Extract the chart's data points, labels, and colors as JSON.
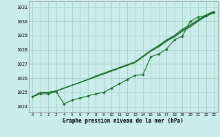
{
  "title": "Graphe pression niveau de la mer (hPa)",
  "bg_color": "#caecea",
  "grid_color": "#aad4cc",
  "line_color": "#1a6b2a",
  "xlim": [
    -0.5,
    23.5
  ],
  "ylim": [
    1023.6,
    1031.4
  ],
  "yticks": [
    1024,
    1025,
    1026,
    1027,
    1028,
    1029,
    1030,
    1031
  ],
  "xticks": [
    0,
    1,
    2,
    3,
    4,
    5,
    6,
    7,
    8,
    9,
    10,
    11,
    12,
    13,
    14,
    15,
    16,
    17,
    18,
    19,
    20,
    21,
    22,
    23
  ],
  "line1": [
    1024.7,
    1025.0,
    1025.0,
    1025.1,
    1025.3,
    1025.5,
    1025.7,
    1025.9,
    1026.1,
    1026.3,
    1026.5,
    1026.7,
    1026.9,
    1027.1,
    1027.5,
    1027.9,
    1028.2,
    1028.6,
    1028.9,
    1029.3,
    1029.6,
    1030.0,
    1030.35,
    1030.6
  ],
  "line2": [
    1024.7,
    1025.0,
    1025.0,
    1025.1,
    1025.3,
    1025.5,
    1025.7,
    1025.9,
    1026.1,
    1026.3,
    1026.5,
    1026.7,
    1026.9,
    1027.1,
    1027.5,
    1027.9,
    1028.25,
    1028.65,
    1028.95,
    1029.35,
    1029.7,
    1030.05,
    1030.4,
    1030.65
  ],
  "line3": [
    1024.7,
    1025.0,
    1025.0,
    1025.1,
    1025.3,
    1025.5,
    1025.7,
    1025.9,
    1026.15,
    1026.35,
    1026.55,
    1026.75,
    1026.95,
    1027.15,
    1027.55,
    1027.95,
    1028.3,
    1028.7,
    1029.0,
    1029.45,
    1029.75,
    1030.1,
    1030.45,
    1030.7
  ],
  "line4": [
    1024.7,
    1024.9,
    1024.9,
    1025.05,
    1024.2,
    1024.45,
    1024.6,
    1024.75,
    1024.9,
    1025.0,
    1025.3,
    1025.6,
    1025.9,
    1026.2,
    1026.25,
    1027.5,
    1027.7,
    1028.05,
    1028.7,
    1028.95,
    1030.0,
    1030.3,
    1030.4,
    1030.65
  ]
}
